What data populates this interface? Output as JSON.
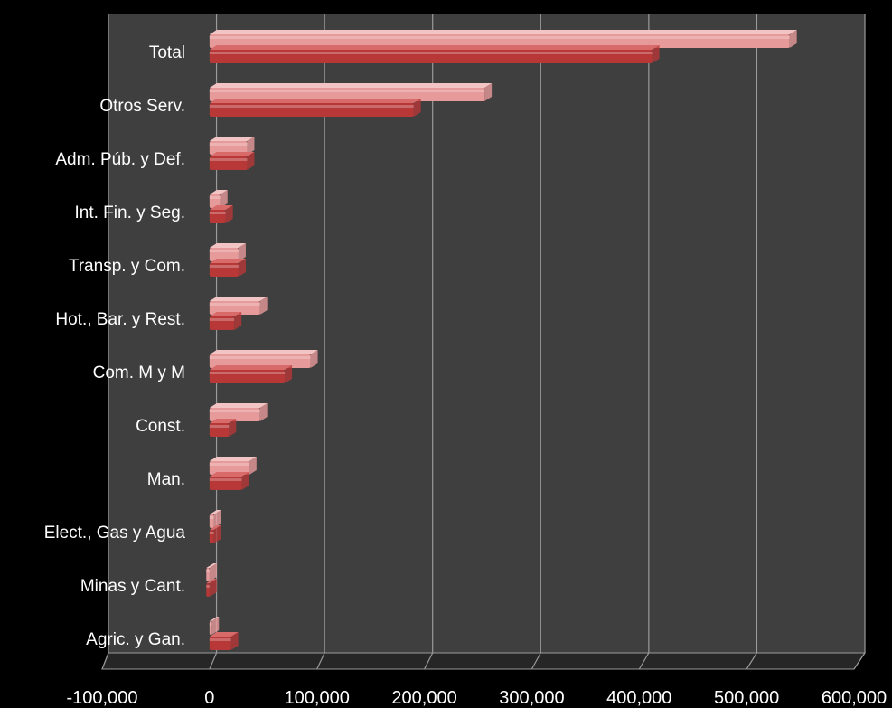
{
  "colors": {
    "background": "#000000",
    "plot_wall": "#3f3f3f",
    "plot_wall_dark": "#262626",
    "gridline": "#9a9a9a",
    "text": "#ffffff",
    "series_a_fill": "#e79a9a",
    "series_a_top": "#f3c4c4",
    "series_b_fill": "#b83838",
    "series_b_top": "#d86a6a"
  },
  "chart_data": {
    "type": "bar",
    "orientation": "horizontal",
    "style": "3d-clustered",
    "title": "",
    "xlabel": "",
    "ylabel": "",
    "legend": "none",
    "grid": true,
    "xlim": [
      -100000,
      600000
    ],
    "x_ticks": [
      -100000,
      0,
      100000,
      200000,
      300000,
      400000,
      500000,
      600000
    ],
    "x_tick_labels": [
      "-100,000",
      "0",
      "100,000",
      "200,000",
      "300,000",
      "400,000",
      "500,000",
      "600,000"
    ],
    "categories": [
      "Total",
      "Otros Serv.",
      "Adm. Púb. y Def.",
      "Int. Fin. y Seg.",
      "Transp. y Com.",
      "Hot., Bar. y Rest.",
      "Com. M y M",
      "Const.",
      "Man.",
      "Elect., Gas y Agua",
      "Minas y Cant.",
      "Agric. y Gan."
    ],
    "series": [
      {
        "values": [
          540000,
          256000,
          35000,
          10000,
          27000,
          47000,
          94000,
          47000,
          37000,
          4000,
          -3000,
          2000
        ]
      },
      {
        "values": [
          412000,
          190000,
          35000,
          15000,
          27000,
          23000,
          70000,
          18000,
          30000,
          4000,
          -3000,
          20000
        ]
      }
    ]
  }
}
